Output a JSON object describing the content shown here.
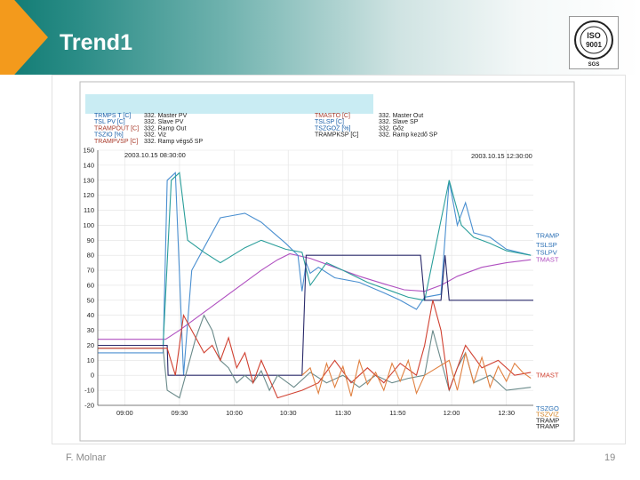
{
  "slide": {
    "title": "Trend1",
    "footer_author": "F. Molnar",
    "page_number": "19"
  },
  "logo": {
    "icon": "iso-9001-seal-icon",
    "text_main": "ISO",
    "text_num": "9001",
    "text_org": "SGS"
  },
  "colors": {
    "accent_orange": "#f39a1c",
    "header_teal": "#0f7a72"
  },
  "chart_data": {
    "type": "line",
    "title": "",
    "xlabel": "",
    "ylabel": "",
    "ylim": [
      -20,
      150
    ],
    "yticks": [
      150,
      140,
      130,
      120,
      110,
      100,
      90,
      80,
      70,
      60,
      50,
      40,
      30,
      20,
      10,
      0,
      -10,
      -20
    ],
    "xlim": [
      0,
      5.33
    ],
    "xticks": [
      {
        "x": 0.33,
        "label": "09:00"
      },
      {
        "x": 1.0,
        "label": "09:30"
      },
      {
        "x": 1.67,
        "label": "10:00"
      },
      {
        "x": 2.33,
        "label": "10:30"
      },
      {
        "x": 3.0,
        "label": "11:30"
      },
      {
        "x": 3.67,
        "label": "11:50"
      },
      {
        "x": 4.33,
        "label": "12:00"
      },
      {
        "x": 5.0,
        "label": "12:30"
      }
    ],
    "start_label": "2003.10.15 08:30:00",
    "end_label": "2003.10.15 12:30:00",
    "legend_left": [
      {
        "tag": "TRMPS T [C]",
        "text": "332. Master PV",
        "color": "#1a5fa8"
      },
      {
        "tag": "TSL PV [C]",
        "text": "332. Slave PV",
        "color": "#1a5fa8"
      },
      {
        "tag": "TRAMPOUT [C]",
        "text": "332. Ramp Out",
        "color": "#a83a2a"
      },
      {
        "tag": "TSZIO [%]",
        "text": "332. Viz",
        "color": "#1a5fa8"
      },
      {
        "tag": "TRAMPVSP [C]",
        "text": "332. Ramp végső SP",
        "color": "#a83a2a"
      }
    ],
    "legend_right": [
      {
        "tag": "TMASTO [C]",
        "text": "332. Master Out",
        "color": "#a83a2a"
      },
      {
        "tag": "TSLSP [C]",
        "text": "332. Slave SP",
        "color": "#1a5fa8"
      },
      {
        "tag": "TSZGOZ [%]",
        "text": "332. Gőz",
        "color": "#1a5fa8"
      },
      {
        "tag": "TRAMPKSP [C]",
        "text": "332. Ramp kezdő SP",
        "color": "#222222"
      }
    ],
    "series_end_labels": [
      {
        "label": "TRAMP",
        "color": "#2a6fb5",
        "y": 93
      },
      {
        "label": "TSLSP",
        "color": "#2a6fb5",
        "y": 87
      },
      {
        "label": "TSLPV",
        "color": "#2a6fb5",
        "y": 82
      },
      {
        "label": "TMAST",
        "color": "#b050c0",
        "y": 77
      },
      {
        "label": "TMAST",
        "color": "#d04030",
        "y": 0
      },
      {
        "label": "TSZGO",
        "color": "#2a6fb5",
        "y": -22
      },
      {
        "label": "TSZVIZ",
        "color": "#d08020",
        "y": -26
      },
      {
        "label": "TRAMP",
        "color": "#222222",
        "y": -30
      },
      {
        "label": "TRAMP",
        "color": "#222222",
        "y": -34
      }
    ],
    "series": [
      {
        "name": "TRAMPVSP",
        "color": "#b050c0",
        "x": [
          0,
          0.83,
          1.0,
          1.25,
          1.5,
          1.75,
          2.0,
          2.2,
          2.35,
          2.6,
          2.9,
          3.2,
          3.5,
          3.75,
          4.0,
          4.2,
          4.4,
          4.7,
          5.0,
          5.3
        ],
        "y": [
          24,
          24,
          30,
          40,
          50,
          60,
          70,
          77,
          81,
          78,
          72,
          66,
          61,
          57,
          56,
          60,
          66,
          72,
          75,
          77
        ]
      },
      {
        "name": "TSLSP",
        "color": "#4a8fd0",
        "x": [
          0,
          0.8,
          0.85,
          0.95,
          1.05,
          1.15,
          1.3,
          1.5,
          1.8,
          2.0,
          2.15,
          2.3,
          2.45,
          2.5,
          2.55,
          2.6,
          2.7,
          2.9,
          3.2,
          3.5,
          3.7,
          3.9,
          4.0,
          4.2,
          4.3,
          4.4,
          4.5,
          4.6,
          4.8,
          5.0,
          5.3
        ],
        "y": [
          15,
          15,
          130,
          135,
          0,
          70,
          85,
          105,
          108,
          102,
          95,
          88,
          80,
          56,
          75,
          68,
          72,
          65,
          62,
          55,
          50,
          44,
          52,
          54,
          130,
          100,
          115,
          95,
          92,
          84,
          80
        ]
      },
      {
        "name": "TSLPV",
        "color": "#2a9e9a",
        "x": [
          0,
          0.8,
          0.9,
          1.0,
          1.1,
          1.3,
          1.5,
          1.8,
          2.0,
          2.3,
          2.5,
          2.6,
          2.8,
          3.0,
          3.3,
          3.6,
          3.8,
          4.0,
          4.3,
          4.45,
          4.6,
          4.8,
          5.0,
          5.3
        ],
        "y": [
          20,
          20,
          130,
          135,
          90,
          82,
          75,
          85,
          90,
          84,
          82,
          60,
          75,
          70,
          62,
          56,
          52,
          50,
          130,
          100,
          92,
          88,
          83,
          80
        ]
      },
      {
        "name": "TRAMPKSP",
        "color": "#2a2a6a",
        "x": [
          0,
          0.85,
          0.86,
          1.5,
          2.0,
          2.5,
          2.55,
          3.0,
          3.6,
          3.95,
          4.0,
          4.2,
          4.25,
          4.3,
          5.33
        ],
        "y": [
          20,
          20,
          0,
          0,
          0,
          0,
          80,
          80,
          80,
          80,
          50,
          50,
          80,
          50,
          50
        ]
      },
      {
        "name": "TSZGOZ",
        "color": "#6a8a8a",
        "x": [
          0,
          0.8,
          0.85,
          1.0,
          1.1,
          1.2,
          1.3,
          1.4,
          1.5,
          1.6,
          1.7,
          1.8,
          1.9,
          2.0,
          2.1,
          2.2,
          2.4,
          2.6,
          2.8,
          3.0,
          3.2,
          3.4,
          3.6,
          3.8,
          4.0,
          4.1,
          4.2,
          4.3,
          4.4,
          4.5,
          4.6,
          4.8,
          5.0,
          5.3
        ],
        "y": [
          18,
          18,
          -10,
          -15,
          5,
          25,
          40,
          30,
          10,
          5,
          -5,
          0,
          -5,
          3,
          -10,
          0,
          -8,
          2,
          -5,
          0,
          -8,
          0,
          -5,
          -2,
          0,
          30,
          10,
          -10,
          5,
          15,
          -5,
          0,
          -10,
          -8
        ]
      },
      {
        "name": "TMASTO",
        "color": "#d04030",
        "x": [
          0,
          0.85,
          0.95,
          1.05,
          1.15,
          1.3,
          1.4,
          1.5,
          1.6,
          1.7,
          1.8,
          1.9,
          2.0,
          2.2,
          2.5,
          2.7,
          2.9,
          3.1,
          3.3,
          3.5,
          3.7,
          3.9,
          4.0,
          4.1,
          4.2,
          4.3,
          4.5,
          4.7,
          4.9,
          5.1,
          5.3
        ],
        "y": [
          18,
          18,
          0,
          40,
          30,
          15,
          20,
          10,
          25,
          5,
          15,
          -5,
          10,
          -15,
          -10,
          -5,
          10,
          -5,
          5,
          -5,
          8,
          0,
          20,
          50,
          30,
          -10,
          20,
          5,
          10,
          0,
          2
        ]
      },
      {
        "name": "TSZVIZ",
        "color": "#e08040",
        "x": [
          2.5,
          2.6,
          2.7,
          2.8,
          2.9,
          3.0,
          3.1,
          3.2,
          3.3,
          3.4,
          3.5,
          3.6,
          3.7,
          3.8,
          3.9,
          4.0,
          4.3,
          4.4,
          4.5,
          4.6,
          4.7,
          4.8,
          4.9,
          5.0,
          5.1,
          5.2,
          5.3
        ],
        "y": [
          0,
          5,
          -12,
          8,
          -8,
          6,
          -14,
          10,
          -6,
          2,
          -10,
          8,
          -4,
          10,
          -12,
          0,
          10,
          -10,
          15,
          -5,
          12,
          -8,
          6,
          -4,
          8,
          2,
          -2
        ]
      }
    ]
  }
}
